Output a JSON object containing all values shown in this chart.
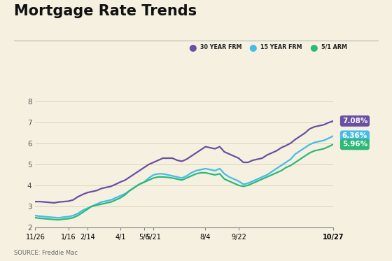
{
  "title": "Mortgage Rate Trends",
  "background_color": "#f5f0e0",
  "source_text": "SOURCE: Freddie Mac",
  "x_labels": [
    "11/26",
    "1/16",
    "2/14",
    "4/1",
    "5/6",
    "5/21",
    "8/4",
    "9/22",
    "10/27"
  ],
  "x_ticks_bold": "10/27",
  "ylim": [
    2,
    8.5
  ],
  "yticks": [
    2,
    3,
    4,
    5,
    6,
    7,
    8
  ],
  "legend_items": [
    {
      "label": "30 YEAR FRM",
      "color": "#6a4fa3"
    },
    {
      "label": "15 YEAR FRM",
      "color": "#45bce8"
    },
    {
      "label": "5/1 ARM",
      "color": "#2db87a"
    }
  ],
  "end_labels": [
    {
      "text": "7.08%",
      "color": "#6a4fa3",
      "value": 7.08
    },
    {
      "text": "6.36%",
      "color": "#45bce8",
      "value": 6.36
    },
    {
      "text": "5.96%",
      "color": "#2db87a",
      "value": 5.96
    }
  ],
  "tick_positions": [
    0,
    0.111,
    0.175,
    0.286,
    0.365,
    0.397,
    0.571,
    0.683,
    1.0
  ],
  "line_30yr": [
    3.22,
    3.22,
    3.2,
    3.18,
    3.16,
    3.2,
    3.22,
    3.24,
    3.3,
    3.45,
    3.56,
    3.65,
    3.7,
    3.75,
    3.85,
    3.9,
    3.95,
    4.05,
    4.16,
    4.25,
    4.4,
    4.55,
    4.7,
    4.85,
    5.0,
    5.1,
    5.2,
    5.3,
    5.3,
    5.3,
    5.2,
    5.15,
    5.25,
    5.4,
    5.55,
    5.7,
    5.85,
    5.8,
    5.75,
    5.85,
    5.6,
    5.5,
    5.4,
    5.3,
    5.1,
    5.1,
    5.2,
    5.25,
    5.3,
    5.45,
    5.55,
    5.65,
    5.8,
    5.9,
    6.02,
    6.2,
    6.35,
    6.5,
    6.7,
    6.8,
    6.85,
    6.9,
    7.0,
    7.08
  ],
  "line_15yr": [
    2.55,
    2.52,
    2.5,
    2.48,
    2.46,
    2.44,
    2.48,
    2.5,
    2.55,
    2.65,
    2.8,
    2.9,
    3.0,
    3.1,
    3.2,
    3.25,
    3.3,
    3.4,
    3.5,
    3.6,
    3.75,
    3.9,
    4.05,
    4.15,
    4.35,
    4.5,
    4.55,
    4.55,
    4.5,
    4.45,
    4.4,
    4.35,
    4.45,
    4.6,
    4.7,
    4.75,
    4.8,
    4.75,
    4.7,
    4.8,
    4.55,
    4.4,
    4.3,
    4.2,
    4.05,
    4.1,
    4.2,
    4.3,
    4.4,
    4.5,
    4.65,
    4.8,
    4.95,
    5.1,
    5.25,
    5.5,
    5.65,
    5.8,
    5.95,
    6.05,
    6.1,
    6.15,
    6.25,
    6.36
  ],
  "line_arm": [
    2.45,
    2.42,
    2.4,
    2.38,
    2.36,
    2.35,
    2.38,
    2.4,
    2.45,
    2.55,
    2.7,
    2.85,
    3.0,
    3.05,
    3.1,
    3.15,
    3.2,
    3.3,
    3.4,
    3.55,
    3.75,
    3.9,
    4.05,
    4.15,
    4.25,
    4.35,
    4.4,
    4.4,
    4.38,
    4.35,
    4.3,
    4.25,
    4.35,
    4.45,
    4.55,
    4.6,
    4.6,
    4.55,
    4.5,
    4.55,
    4.3,
    4.2,
    4.1,
    4.0,
    3.95,
    4.0,
    4.1,
    4.2,
    4.3,
    4.4,
    4.5,
    4.6,
    4.7,
    4.85,
    4.95,
    5.1,
    5.25,
    5.4,
    5.55,
    5.65,
    5.7,
    5.75,
    5.85,
    5.96
  ]
}
